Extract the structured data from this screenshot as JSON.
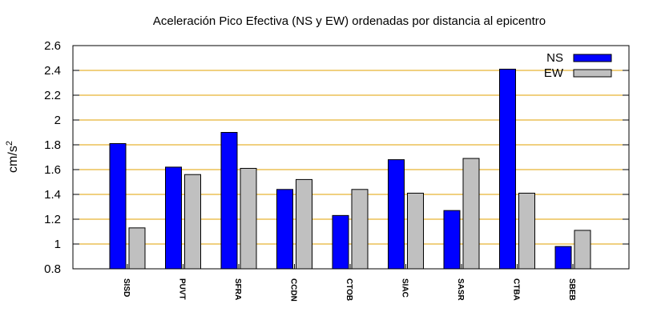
{
  "chart_data": {
    "type": "bar",
    "title": "Aceleración Pico Efectiva (NS y EW) ordenadas por distancia al epicentro",
    "ylabel": "cm/s",
    "ylabel_sup": "2",
    "xlabel": "",
    "ylim": [
      0.8,
      2.6
    ],
    "yticks": [
      0.8,
      1,
      1.2,
      1.4,
      1.6,
      1.8,
      2,
      2.2,
      2.4,
      2.6
    ],
    "ytick_labels": [
      "0.8",
      "1",
      "1.2",
      "1.4",
      "1.6",
      "1.8",
      "2",
      "2.2",
      "2.4",
      "2.6"
    ],
    "grid": true,
    "legend_position": "top-right",
    "categories": [
      "SISD",
      "PUVT",
      "SFRA",
      "CCDN",
      "CTOB",
      "SIAC",
      "SASR",
      "CTBA",
      "SBEB"
    ],
    "series": [
      {
        "name": "NS",
        "color": "#0000ff",
        "values": [
          1.81,
          1.62,
          1.9,
          1.44,
          1.23,
          1.68,
          1.27,
          2.41,
          0.98
        ]
      },
      {
        "name": "EW",
        "color": "#c0c0c0",
        "values": [
          1.13,
          1.56,
          1.61,
          1.52,
          1.44,
          1.41,
          1.69,
          1.41,
          1.11
        ]
      }
    ],
    "grid_color": "#e0a000"
  }
}
